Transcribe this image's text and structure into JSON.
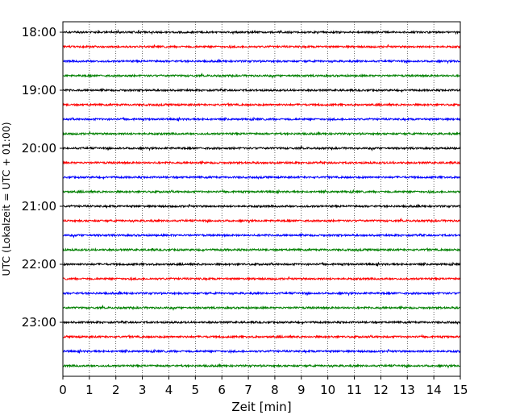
{
  "chart_data": {
    "type": "line",
    "title": "",
    "xlabel": "Zeit  [min]",
    "ylabel": "UTC (Lokalzeit = UTC + 01:00)",
    "xlim": [
      0,
      15
    ],
    "x_ticks": [
      0,
      1,
      2,
      3,
      4,
      5,
      6,
      7,
      8,
      9,
      10,
      11,
      12,
      13,
      14,
      15
    ],
    "y_tick_labels": [
      "18:00",
      "19:00",
      "20:00",
      "21:00",
      "22:00",
      "23:00"
    ],
    "trace_interval_min": 15,
    "start_time": "18:00",
    "end_time": "23:45",
    "trace_colors": [
      "#000000",
      "#ff0000",
      "#0000ff",
      "#008000"
    ],
    "grid": "vertical dotted lines at each minute",
    "series": [
      {
        "start": "18:00",
        "color": "#000000"
      },
      {
        "start": "18:15",
        "color": "#ff0000"
      },
      {
        "start": "18:30",
        "color": "#0000ff"
      },
      {
        "start": "18:45",
        "color": "#008000"
      },
      {
        "start": "19:00",
        "color": "#000000"
      },
      {
        "start": "19:15",
        "color": "#ff0000"
      },
      {
        "start": "19:30",
        "color": "#0000ff"
      },
      {
        "start": "19:45",
        "color": "#008000"
      },
      {
        "start": "20:00",
        "color": "#000000"
      },
      {
        "start": "20:15",
        "color": "#ff0000"
      },
      {
        "start": "20:30",
        "color": "#0000ff"
      },
      {
        "start": "20:45",
        "color": "#008000"
      },
      {
        "start": "21:00",
        "color": "#000000"
      },
      {
        "start": "21:15",
        "color": "#ff0000"
      },
      {
        "start": "21:30",
        "color": "#0000ff"
      },
      {
        "start": "21:45",
        "color": "#008000"
      },
      {
        "start": "22:00",
        "color": "#000000"
      },
      {
        "start": "22:15",
        "color": "#ff0000"
      },
      {
        "start": "22:30",
        "color": "#0000ff"
      },
      {
        "start": "22:45",
        "color": "#008000"
      },
      {
        "start": "23:00",
        "color": "#000000"
      },
      {
        "start": "23:15",
        "color": "#ff0000"
      },
      {
        "start": "23:30",
        "color": "#0000ff"
      },
      {
        "start": "23:45",
        "color": "#008000"
      }
    ]
  }
}
